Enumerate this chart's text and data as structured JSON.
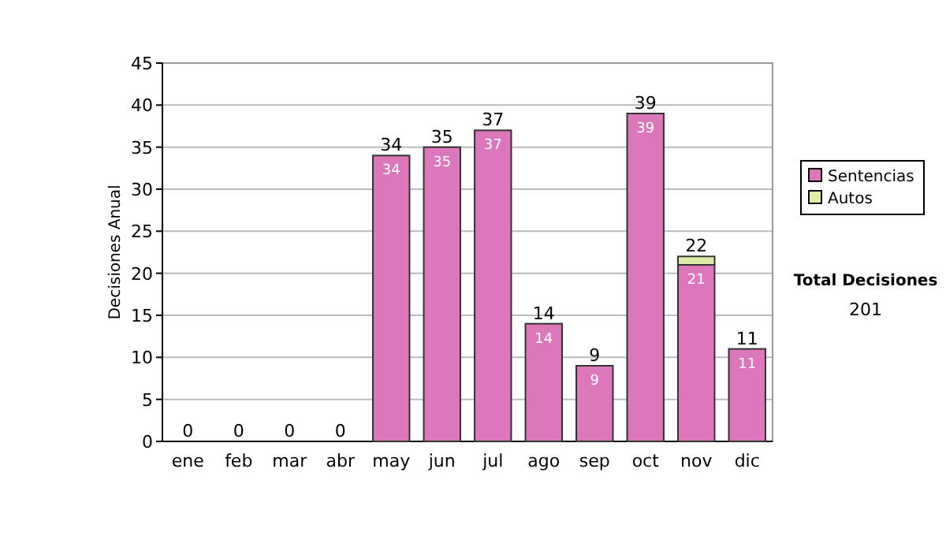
{
  "chart_data": {
    "type": "bar",
    "ylabel": "Decisiones Anual",
    "categories": [
      "ene",
      "feb",
      "mar",
      "abr",
      "may",
      "jun",
      "jul",
      "ago",
      "sep",
      "oct",
      "nov",
      "dic"
    ],
    "stacked": true,
    "series": [
      {
        "name": "Sentencias",
        "color": "#dd77bb",
        "values": [
          0,
          0,
          0,
          0,
          34,
          35,
          37,
          14,
          9,
          39,
          21,
          11
        ],
        "value_labels": [
          null,
          null,
          null,
          null,
          "34",
          "35",
          "37",
          "14",
          "9",
          "39",
          "21",
          "11"
        ]
      },
      {
        "name": "Autos",
        "color": "#ddeeaa",
        "values": [
          0,
          0,
          0,
          0,
          0,
          0,
          0,
          0,
          0,
          0,
          1,
          0
        ]
      }
    ],
    "totals": [
      "0",
      "0",
      "0",
      "0",
      "34",
      "35",
      "37",
      "14",
      "9",
      "39",
      "22",
      "11"
    ],
    "ylim": [
      0,
      45
    ],
    "yticks": [
      0,
      5,
      10,
      15,
      20,
      25,
      30,
      35,
      40,
      45
    ],
    "grid": "y",
    "legend": "right",
    "annotations": [
      "Total Decisiones",
      "201"
    ]
  }
}
